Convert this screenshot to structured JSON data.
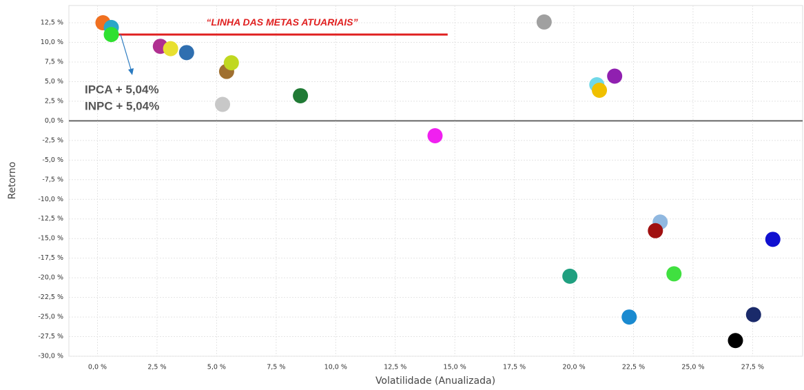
{
  "chart_data": {
    "type": "scatter",
    "x_label": "Volatilidade (Anualizada)",
    "y_label": "Retorno",
    "xlim": [
      -1.2,
      29.6
    ],
    "ylim": [
      -30,
      14.7
    ],
    "xticks": [
      {
        "value": 0,
        "label": "0,0 %"
      },
      {
        "value": 2.5,
        "label": "2,5 %"
      },
      {
        "value": 5,
        "label": "5,0 %"
      },
      {
        "value": 7.5,
        "label": "7,5 %"
      },
      {
        "value": 10,
        "label": "10,0 %"
      },
      {
        "value": 12.5,
        "label": "12,5 %"
      },
      {
        "value": 15,
        "label": "15,0 %"
      },
      {
        "value": 17.5,
        "label": "17,5 %"
      },
      {
        "value": 20,
        "label": "20,0 %"
      },
      {
        "value": 22.5,
        "label": "22,5 %"
      },
      {
        "value": 25,
        "label": "25,0 %"
      },
      {
        "value": 27.5,
        "label": "27,5 %"
      }
    ],
    "yticks": [
      {
        "value": 12.5,
        "label": "12,5 %"
      },
      {
        "value": 10,
        "label": "10,0 %"
      },
      {
        "value": 7.5,
        "label": "7,5 %"
      },
      {
        "value": 5,
        "label": "5,0 %"
      },
      {
        "value": 2.5,
        "label": "2,5 %"
      },
      {
        "value": 0,
        "label": "0,0 %"
      },
      {
        "value": -2.5,
        "label": "-2,5 %"
      },
      {
        "value": -5,
        "label": "-5,0 %"
      },
      {
        "value": -7.5,
        "label": "-7,5 %"
      },
      {
        "value": -10,
        "label": "-10,0 %"
      },
      {
        "value": -12.5,
        "label": "-12,5 %"
      },
      {
        "value": -15,
        "label": "-15,0 %"
      },
      {
        "value": -17.5,
        "label": "-17,5 %"
      },
      {
        "value": -20,
        "label": "-20,0 %"
      },
      {
        "value": -22.5,
        "label": "-22,5 %"
      },
      {
        "value": -25,
        "label": "-25,0 %"
      },
      {
        "value": -27.5,
        "label": "-27,5 %"
      },
      {
        "value": -30,
        "label": "-30,0 %"
      }
    ],
    "grid": true,
    "x": [
      0.23,
      0.58,
      0.58,
      2.64,
      3.07,
      3.74,
      5.42,
      5.62,
      5.25,
      8.52,
      18.75,
      20.96,
      21.07,
      21.71,
      14.17,
      23.62,
      23.42,
      28.35,
      19.83,
      24.2,
      22.32,
      27.54,
      26.78
    ],
    "values": [
      12.5,
      11.9,
      11.0,
      9.5,
      9.2,
      8.7,
      6.3,
      7.4,
      2.1,
      3.2,
      12.6,
      4.6,
      3.9,
      5.7,
      -1.9,
      -12.9,
      -14.0,
      -15.1,
      -19.8,
      -19.5,
      -25.0,
      -24.7,
      -28.0
    ],
    "colors": [
      "#f07020",
      "#2aa7c8",
      "#30e030",
      "#b03090",
      "#e8e030",
      "#2f6fb0",
      "#a07030",
      "#c0d820",
      "#c8c8c8",
      "#207a35",
      "#a0a0a0",
      "#70d8e8",
      "#f0c000",
      "#9020b0",
      "#f020f0",
      "#90b8e0",
      "#a01010",
      "#1010d0",
      "#20a080",
      "#40e040",
      "#1a8ad0",
      "#1a2a6a",
      "#000000"
    ],
    "reference_line": {
      "label": "“LINHA DAS METAS ATUARIAIS”",
      "y": 11.0,
      "x": [
        0.8,
        14.7
      ],
      "color": "#e02020"
    },
    "annotations": [
      "IPCA + 5,04%",
      "INPC + 5,04%"
    ]
  }
}
